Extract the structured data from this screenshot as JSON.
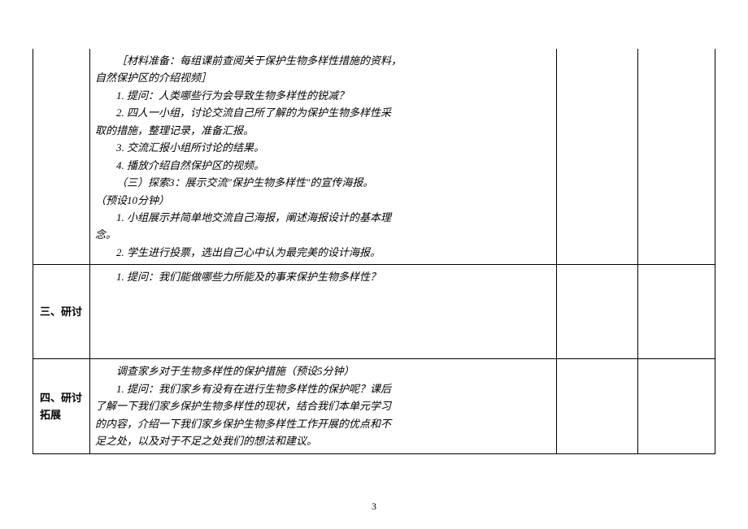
{
  "table": {
    "rows": [
      {
        "label": "",
        "content_lines": [
          "［材料准备：每组课前查阅关于保护生物多样性措施的资料，",
          "自然保护区的介绍视频］",
          "1. 提问：人类哪些行为会导致生物多样性的锐减？",
          "2. 四人一小组，讨论交流自己所了解的为保护生物多样性采",
          "取的措施，整理记录，准备汇报。",
          "3. 交流汇报小组所讨论的结果。",
          "4. 播放介绍自然保护区的视频。",
          "（三）探索3：展示交流\"保护生物多样性\"的宣传海报。",
          "（预设10分钟）",
          "1. 小组展示并简单地交流自己海报，阐述海报设计的基本理",
          "念。",
          "2. 学生进行投票，选出自己心中认为最完美的设计海报。"
        ],
        "indent_flags": [
          true,
          false,
          true,
          true,
          false,
          true,
          true,
          true,
          false,
          true,
          false,
          true
        ],
        "col3": "",
        "col4": ""
      },
      {
        "label": "三、研讨",
        "content_lines": [
          "1. 提问：我们能做哪些力所能及的事来保护生物多样性？",
          "",
          "",
          "",
          ""
        ],
        "indent_flags": [
          true,
          false,
          false,
          false,
          false
        ],
        "col3": "",
        "col4": ""
      },
      {
        "label": "四、研讨拓展",
        "content_lines": [
          "调查家乡对于生物多样性的保护措施（预设5分钟）",
          "1. 提问：我们家乡有没有在进行生物多样性的保护呢？课后",
          "了解一下我们家乡保护生物多样性的现状，结合我们本单元学习",
          "的内容，介绍一下我们家乡保护生物多样性工作开展的优点和不",
          "足之处，以及对于不足之处我们的想法和建议。"
        ],
        "indent_flags": [
          true,
          true,
          false,
          false,
          false
        ],
        "col3": "",
        "col4": ""
      }
    ]
  },
  "page_number": "3"
}
